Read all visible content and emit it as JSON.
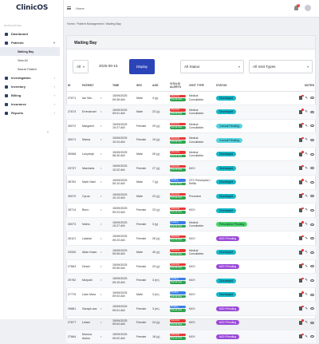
{
  "app": {
    "title": "ClinicOS"
  },
  "sidebar": {
    "section_title": "NAVIGATION",
    "items": [
      {
        "label": "Dashboard"
      },
      {
        "label": "Patients"
      },
      {
        "label": "Investigation"
      },
      {
        "label": "Inventory"
      },
      {
        "label": "Billing"
      },
      {
        "label": "Insurance"
      },
      {
        "label": "Reports"
      }
    ],
    "patients_sub": [
      {
        "label": "Waiting Bay"
      },
      {
        "label": "View All"
      },
      {
        "label": "Search Patient"
      }
    ],
    "collapse_icon": "chevron-left-icon"
  },
  "topbar": {
    "home_label": "Home",
    "notification_count": "8"
  },
  "breadcrumb": {
    "home": "Home",
    "section": "Patient Management",
    "page": "Waiting Bay"
  },
  "panel": {
    "title": "Waiting Bay"
  },
  "filters": {
    "scope_value": "All",
    "date_value": "2025-09-15",
    "display_button": "Display",
    "status_value": "All Status",
    "visit_type_value": "All Visit Types"
  },
  "table": {
    "columns": [
      "ID",
      "PATIENT",
      "TIME",
      "SEX",
      "AGE",
      "VITALS/ ALERTS",
      "VISIT TYPE",
      "STATUS",
      "NOTES"
    ],
    "rows": [
      {
        "id": "27671",
        "patient": "Ian Wa...",
        "time": "15/09/2025 09:28 AM",
        "sex": "Male",
        "age": "4 (y)",
        "vitals": [
          "Abnormal",
          "Normal Care"
        ],
        "visit": "Medical Consultation",
        "status": "Discharged"
      },
      {
        "id": "27674",
        "patient": "Emmanuel",
        "time": "15/09/2025 09:01 AM",
        "sex": "Male",
        "age": "23 (y)",
        "vitals": [
          "Abnormal",
          "Normal Care"
        ],
        "visit": "Medical Consultation",
        "status": "Discharged"
      },
      {
        "id": "30072",
        "patient": "Margaret",
        "time": "15/09/2025 10:27 AM",
        "sex": "Female",
        "age": "29 (y)",
        "vitals": [
          "Abnormal",
          "Normal Care"
        ],
        "visit": "Medical Consultation",
        "status": "Consult Pending"
      },
      {
        "id": "30071",
        "patient": "Maina",
        "time": "15/09/2025 10:24 AM",
        "sex": "Female",
        "age": "19 (y)",
        "vitals": [
          "Abnormal",
          "Normal Care"
        ],
        "visit": "Medical Consultation",
        "status": "Consult Pending"
      },
      {
        "id": "30068",
        "patient": "Lunyeeje",
        "time": "15/09/2025 08:40 AM",
        "sex": "Male",
        "age": "26 (y)",
        "vitals": [
          "Abnormal",
          "Normal Care"
        ],
        "visit": "Medical Consultation",
        "status": "Discharged"
      },
      {
        "id": "29737",
        "patient": "Macharia",
        "time": "15/09/2025 10:22 AM",
        "sex": "Female",
        "age": "27 (y)",
        "vitals": [
          "Abnormal",
          "Normal Care"
        ],
        "visit": "MCH",
        "status": "Discharged"
      },
      {
        "id": "28762",
        "patient": "Mark Ndei",
        "time": "15/09/2025 09:10 AM",
        "sex": "Male",
        "age": "7 (y)",
        "vitals": [
          "Pending",
          "Normal Care"
        ],
        "visit": "OTC Prescription / Refills",
        "status": "Discharged"
      },
      {
        "id": "30070",
        "patient": "Cyrus",
        "time": "15/09/2025 10:13 AM",
        "sex": "Male",
        "age": "23 (y)",
        "vitals": [
          "Abnormal",
          "Normal Care"
        ],
        "visit": "Procedure",
        "status": "Discharged"
      },
      {
        "id": "28714",
        "patient": "Bizru",
        "time": "15/09/2025 09:23 AM",
        "sex": "Female",
        "age": "23 (y)",
        "vitals": [
          "Abnormal",
          "Normal Care"
        ],
        "visit": "MCH",
        "status": "Discharged"
      },
      {
        "id": "30073",
        "patient": "Ndelu",
        "time": "15/09/2025 10:27 AM",
        "sex": "Female",
        "age": "3 (y)",
        "vitals": [
          "Pending",
          "Normal Care"
        ],
        "visit": "Medical Consultation",
        "status": "Prescription Pending"
      },
      {
        "id": "26121",
        "patient": "Lalakai",
        "time": "15/09/2025 09:23 AM",
        "sex": "Female",
        "age": "28 (y)",
        "vitals": [
          "Abnormal",
          "Normal Care"
        ],
        "visit": "MCH",
        "status": "MCH Pending"
      },
      {
        "id": "23330",
        "patient": "Allan Kawu",
        "time": "15/09/2025 09:08 AM",
        "sex": "Male",
        "age": "40 (y)",
        "vitals": [
          "Abnormal",
          "Normal Care"
        ],
        "visit": "Medical Consultation",
        "status": "Discharged"
      },
      {
        "id": "27663",
        "patient": "Dinah",
        "time": "15/09/2025 09:06 AM",
        "sex": "Female",
        "age": "23 (y)",
        "vitals": [
          "Abnormal",
          "Normal Care"
        ],
        "visit": "MCH",
        "status": "MCH Pending"
      },
      {
        "id": "29752",
        "patient": "Mutyobi",
        "time": "15/09/2025 09:15 AM",
        "sex": "Female",
        "age": "3 (m)",
        "vitals": [
          "Pending",
          "Normal Care"
        ],
        "visit": "MCH",
        "status": "Discharged"
      },
      {
        "id": "27775",
        "patient": "Liam Mwa",
        "time": "15/09/2025 09:03 AM",
        "sex": "Male",
        "age": "3 (m)",
        "vitals": [
          "Pending",
          "Normal Care"
        ],
        "visit": "MCH",
        "status": "Discharged"
      },
      {
        "id": "29881",
        "patient": "Saraph ara",
        "time": "15/09/2025 09:01 AM",
        "sex": "Female",
        "age": "3 (m)",
        "vitals": [
          "Pending",
          "Normal Care"
        ],
        "visit": "MCH",
        "status": "MCH Pending"
      },
      {
        "id": "27677",
        "patient": "Lelani",
        "time": "15/09/2025 09:04 AM",
        "sex": "Female",
        "age": "24 (y)",
        "vitals": [
          "Abnormal",
          "Normal Care"
        ],
        "visit": "MCH",
        "status": "MCH Pending"
      },
      {
        "id": "27664",
        "patient": "Monica Awino",
        "time": "15/09/2025 09:02 AM",
        "sex": "Female",
        "age": "18 (y)",
        "vitals": [
          "Abnormal",
          "Normal Care"
        ],
        "visit": "MCH",
        "status": "MCH Pending"
      }
    ]
  }
}
